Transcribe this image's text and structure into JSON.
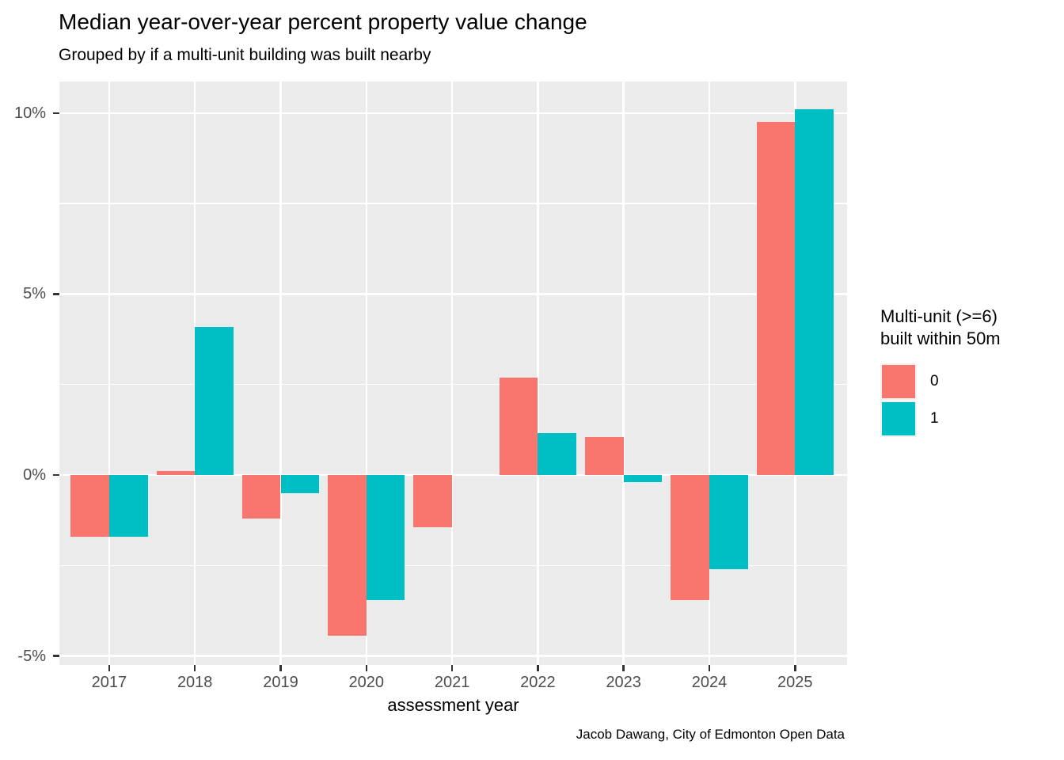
{
  "header": {
    "title": "Median year-over-year percent property value change",
    "subtitle": "Grouped by if a multi-unit building was built nearby"
  },
  "caption": "Jacob Dawang, City of Edmonton Open Data",
  "legend": {
    "title_line1": "Multi-unit (>=6)",
    "title_line2": "built within 50m",
    "position": "right",
    "items": [
      {
        "label": "0",
        "color": "#F8766D"
      },
      {
        "label": "1",
        "color": "#00BFC4"
      }
    ]
  },
  "colors": {
    "panel_background": "#EBEBEB",
    "gridline": "#FFFFFF",
    "axis_text": "#4D4D4D",
    "tick_mark": "#333333",
    "group0": "#F8766D",
    "group1": "#00BFC4"
  },
  "chart_data": {
    "type": "bar",
    "title": "Median year-over-year percent property value change",
    "subtitle": "Grouped by if a multi-unit building was built nearby",
    "xlabel": "assessment year",
    "ylabel": "",
    "categories": [
      "2017",
      "2018",
      "2019",
      "2020",
      "2021",
      "2022",
      "2023",
      "2024",
      "2025"
    ],
    "series": [
      {
        "name": "0",
        "color": "#F8766D",
        "values": [
          -1.7,
          0.1,
          -1.2,
          -4.45,
          -1.45,
          2.7,
          1.05,
          -3.45,
          9.75
        ]
      },
      {
        "name": "1",
        "color": "#00BFC4",
        "values": [
          -1.7,
          4.1,
          -0.5,
          -3.45,
          0,
          1.15,
          -0.2,
          -2.6,
          10.1
        ]
      }
    ],
    "unit": "percent",
    "ylim": [
      -5.25,
      10.87
    ],
    "y_ticks_major": [
      -5,
      0,
      5,
      10
    ],
    "y_tick_labels": [
      "-5%",
      "0%",
      "5%",
      "10%"
    ],
    "y_ticks_minor": [
      -2.5,
      2.5,
      7.5
    ],
    "grid": true,
    "legend_position": "right"
  }
}
